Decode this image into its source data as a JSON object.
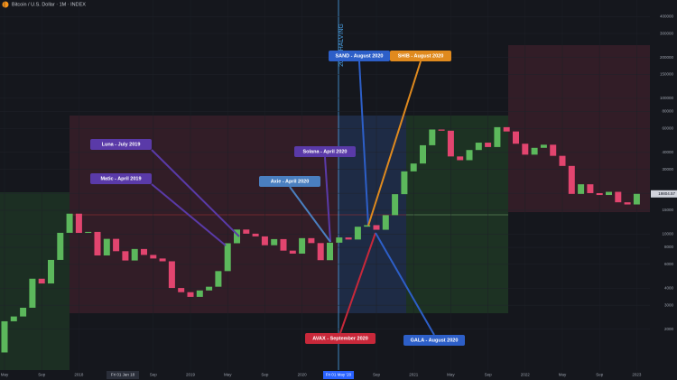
{
  "chart_data": {
    "type": "candlestick",
    "title": "Bitcoin / U.S. Dollar · 1M · INDEX",
    "halving_label": "2020 HALVING",
    "crosshair_labels": [
      "Fri 01 Jan 18",
      "Fri 01 May '20"
    ],
    "price_label": "19804.57",
    "log_scale": true,
    "up_color": "#5cb85c",
    "down_color": "#e2456f",
    "x": [
      "2017-05",
      "2017-06",
      "2017-07",
      "2017-08",
      "2017-09",
      "2017-10",
      "2017-11",
      "2017-12",
      "2018-01",
      "2018-02",
      "2018-03",
      "2018-04",
      "2018-05",
      "2018-06",
      "2018-07",
      "2018-08",
      "2018-09",
      "2018-10",
      "2018-11",
      "2018-12",
      "2019-01",
      "2019-02",
      "2019-03",
      "2019-04",
      "2019-05",
      "2019-06",
      "2019-07",
      "2019-08",
      "2019-09",
      "2019-10",
      "2019-11",
      "2019-12",
      "2020-01",
      "2020-02",
      "2020-03",
      "2020-04",
      "2020-05",
      "2020-06",
      "2020-07",
      "2020-08",
      "2020-09",
      "2020-10",
      "2020-11",
      "2020-12",
      "2021-01",
      "2021-02",
      "2021-03",
      "2021-04",
      "2021-05",
      "2021-06",
      "2021-07",
      "2021-08",
      "2021-09",
      "2021-10",
      "2021-11",
      "2021-12",
      "2022-01",
      "2022-02",
      "2022-03",
      "2022-04",
      "2022-05",
      "2022-06",
      "2022-07",
      "2022-08",
      "2022-09",
      "2022-10",
      "2022-11",
      "2022-12",
      "2023-01"
    ],
    "open": [
      1348,
      2286,
      2480,
      2875,
      4703,
      4338,
      6468,
      10233,
      14156,
      10221,
      10397,
      6973,
      9240,
      7494,
      6404,
      7780,
      7037,
      6625,
      6317,
      4017,
      3742,
      3457,
      3854,
      4105,
      5350,
      8574,
      10817,
      10085,
      9630,
      8293,
      9199,
      7569,
      7193,
      9350,
      8600,
      6438,
      8658,
      9461,
      9137,
      11351,
      11655,
      10779,
      13805,
      19700,
      28990,
      33114,
      45137,
      58918,
      57750,
      37332,
      35040,
      41626,
      47166,
      43790,
      61318,
      57005,
      46306,
      38483,
      43193,
      45538,
      37714,
      31792,
      19784,
      23297,
      20050,
      19423,
      20495,
      17168,
      16547
    ],
    "close": [
      2286,
      2480,
      2875,
      4703,
      4338,
      6468,
      10233,
      14156,
      10221,
      10397,
      6973,
      9240,
      7494,
      6404,
      7780,
      7037,
      6625,
      6317,
      4017,
      3742,
      3457,
      3854,
      4105,
      5350,
      8574,
      10817,
      10085,
      9630,
      8293,
      9199,
      7569,
      7193,
      9350,
      8600,
      6438,
      8658,
      9461,
      9137,
      11351,
      11655,
      10779,
      13805,
      19700,
      28990,
      33114,
      45137,
      58918,
      57750,
      37332,
      35040,
      41626,
      47166,
      43790,
      61318,
      57005,
      46306,
      38483,
      43193,
      45538,
      37714,
      31792,
      19784,
      23297,
      20050,
      19423,
      20495,
      17168,
      16547,
      19804.57
    ],
    "ylim": [
      1000,
      490000
    ],
    "yticks": [
      2000,
      3000,
      4000,
      6000,
      8000,
      10000,
      15000,
      20000,
      30000,
      40000,
      60000,
      80000,
      100000,
      150000,
      200000,
      300000,
      400000
    ],
    "xticks": [
      {
        "value": "2017-05",
        "label": "May"
      },
      {
        "value": "2017-09",
        "label": "Sep"
      },
      {
        "value": "2018-01",
        "label": "2018"
      },
      {
        "value": "2018-09",
        "label": "Sep"
      },
      {
        "value": "2019-01",
        "label": "2019"
      },
      {
        "value": "2019-05",
        "label": "May"
      },
      {
        "value": "2019-09",
        "label": "Sep"
      },
      {
        "value": "2020-01",
        "label": "2020"
      },
      {
        "value": "2020-09",
        "label": "Sep"
      },
      {
        "value": "2021-01",
        "label": "2021"
      },
      {
        "value": "2021-05",
        "label": "May"
      },
      {
        "value": "2021-09",
        "label": "Sep"
      },
      {
        "value": "2022-01",
        "label": "2022"
      },
      {
        "value": "2022-05",
        "label": "May"
      },
      {
        "value": "2022-09",
        "label": "Sep"
      },
      {
        "value": "2023-01",
        "label": "2023"
      }
    ],
    "annotations": [
      {
        "text": "Luna - July 2019",
        "color": "#5a3aa8"
      },
      {
        "text": "Matic - April 2019",
        "color": "#5a3aa8"
      },
      {
        "text": "Solana - April 2020",
        "color": "#5a3aa8"
      },
      {
        "text": "Axie - April 2020",
        "color": "#4a7fc0"
      },
      {
        "text": "SAND - August 2020",
        "color": "#2d5fc8"
      },
      {
        "text": "SHIB - August 2020",
        "color": "#e08a1e"
      },
      {
        "text": "AVAX - September 2020",
        "color": "#c8283a"
      },
      {
        "text": "GALA - August 2020",
        "color": "#2d5fc8"
      }
    ]
  }
}
